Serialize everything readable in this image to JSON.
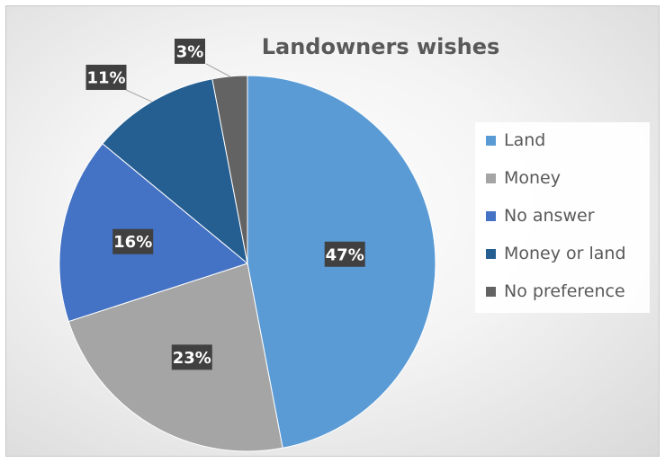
{
  "chart_data": {
    "type": "pie",
    "title": "Landowners wishes",
    "categories": [
      "Land",
      "Money",
      "No answer",
      "Money or land",
      "No preference"
    ],
    "values": [
      47,
      23,
      16,
      11,
      3
    ],
    "data_labels": [
      "47%",
      "23%",
      "16%",
      "11%",
      "3%"
    ],
    "colors": [
      "#5b9bd5",
      "#a5a5a5",
      "#4472c4",
      "#255e91",
      "#636363"
    ],
    "legend_placement": "right"
  }
}
